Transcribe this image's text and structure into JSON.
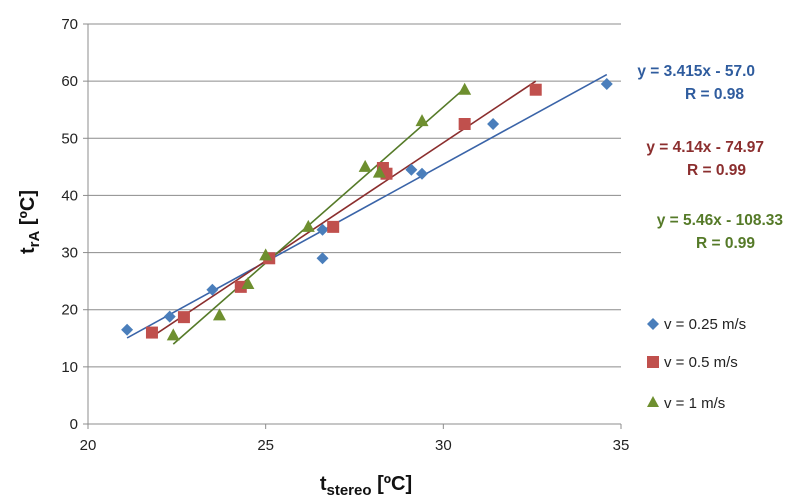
{
  "chart_data": {
    "type": "scatter",
    "xlabel": {
      "main": "t",
      "sub": "stereo",
      "unit": " [ºC]"
    },
    "ylabel": {
      "main": "t",
      "sub": "rA",
      "unit": " [ºC]"
    },
    "xlim": [
      20,
      35
    ],
    "ylim": [
      0,
      70
    ],
    "x_ticks": [
      "20",
      "25",
      "30",
      "35"
    ],
    "y_ticks": [
      "0",
      "10",
      "20",
      "30",
      "40",
      "50",
      "60",
      "70"
    ],
    "grid": "horizontal",
    "legend_position": "right",
    "series": [
      {
        "name": "v = 0.25 m/s",
        "marker": "diamond",
        "color": "#4a7ebb",
        "line_color": "#3a64a8",
        "x": [
          21.1,
          22.3,
          23.5,
          26.6,
          26.6,
          29.1,
          29.4,
          31.4,
          34.6
        ],
        "y": [
          16.5,
          18.8,
          23.5,
          34.0,
          29.0,
          44.5,
          43.8,
          52.5,
          59.5
        ],
        "trend_x": [
          21.1,
          34.6
        ],
        "equation": "y = 3.415x - 57.0",
        "r_value": "R = 0.98",
        "label_color": "#2f5c9e"
      },
      {
        "name": "v = 0.5 m/s",
        "marker": "square",
        "color": "#c0504d",
        "line_color": "#8b2e2e",
        "x": [
          21.8,
          22.7,
          24.3,
          25.1,
          26.9,
          28.3,
          28.4,
          30.6,
          32.6
        ],
        "y": [
          16.0,
          18.7,
          24.0,
          29.0,
          34.5,
          44.8,
          43.8,
          52.5,
          58.5
        ],
        "trend_x": [
          21.8,
          32.6
        ],
        "equation": "y = 4.14x - 74.97",
        "r_value": "R = 0.99",
        "label_color": "#8b2e2e"
      },
      {
        "name": "v = 1 m/s",
        "marker": "triangle",
        "color": "#6e8f2f",
        "line_color": "#557a28",
        "x": [
          22.4,
          23.7,
          24.5,
          25.0,
          26.2,
          27.8,
          28.2,
          29.4,
          30.6
        ],
        "y": [
          15.5,
          19.0,
          24.5,
          29.5,
          34.5,
          45.0,
          44.0,
          53.0,
          58.5
        ],
        "trend_x": [
          22.4,
          30.6
        ],
        "equation": "y = 5.46x - 108.33",
        "r_value": "R = 0.99",
        "label_color": "#557a28"
      }
    ]
  }
}
